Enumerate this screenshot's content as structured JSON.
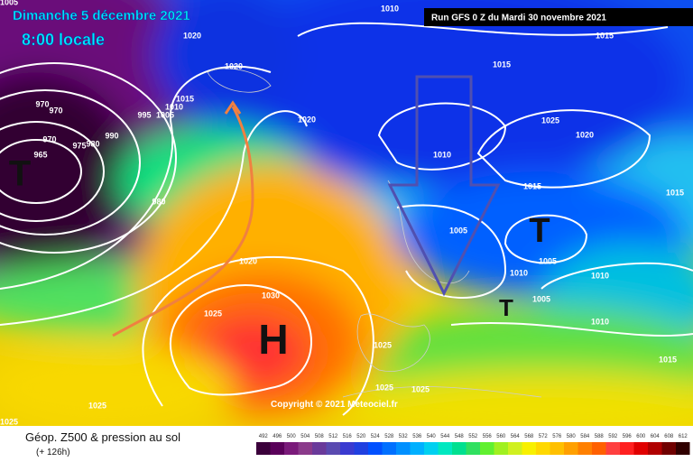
{
  "header": {
    "date": "Dimanche 5 décembre 2021",
    "time": "8:00 locale",
    "run": "Run GFS 0 Z du Mardi 30 novembre 2021"
  },
  "copyright": "Copyright © 2021 Meteociel.fr",
  "footer": {
    "title": "Géop. Z500 & pression au sol",
    "lead": "(+ 126h)"
  },
  "centers": [
    "H",
    "T",
    "T",
    "T"
  ],
  "isobar_labels": [
    "1005",
    "1010",
    "1020",
    "1020",
    "1015",
    "1015",
    "1015",
    "1010",
    "1005",
    "995",
    "970",
    "970",
    "970",
    "965",
    "975",
    "980",
    "990",
    "1020",
    "1025",
    "1020",
    "1010",
    "1015",
    "1015",
    "1005",
    "1005",
    "1010",
    "1010",
    "1005",
    "1010",
    "1015",
    "980",
    "1020",
    "1030",
    "1025",
    "1025",
    "1025",
    "1025",
    "1025",
    "1025"
  ],
  "legend": {
    "levels": [
      492,
      496,
      500,
      504,
      508,
      512,
      516,
      520,
      524,
      528,
      532,
      536,
      540,
      544,
      548,
      552,
      556,
      560,
      564,
      568,
      572,
      576,
      580,
      584,
      588,
      592,
      596,
      600,
      604,
      608,
      612
    ],
    "colors": [
      "#3b003b",
      "#5a005a",
      "#7a1a7a",
      "#8a3a8a",
      "#6a3a9a",
      "#5a4ab0",
      "#3a3ad0",
      "#2040e0",
      "#0050ff",
      "#0070ff",
      "#0090ff",
      "#00b0ff",
      "#00d0f0",
      "#00e8c0",
      "#00e090",
      "#30e060",
      "#60f030",
      "#a0f020",
      "#d0f020",
      "#f8f000",
      "#ffd800",
      "#ffc000",
      "#ffa000",
      "#ff8000",
      "#ff6000",
      "#ff4040",
      "#ff2020",
      "#e00000",
      "#b00000",
      "#700000",
      "#300000"
    ]
  }
}
